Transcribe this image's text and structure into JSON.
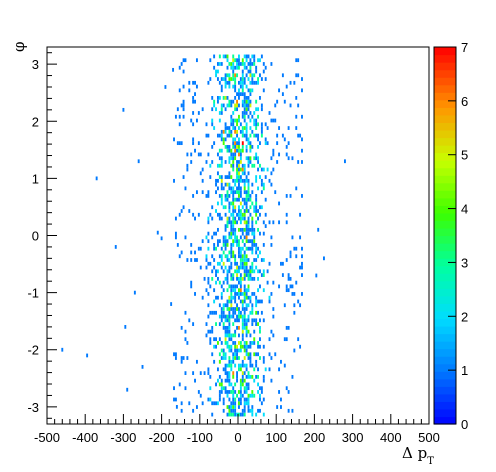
{
  "chart_data": {
    "type": "heatmap",
    "title": "",
    "xlabel": "Δ p_T",
    "ylabel": "φ",
    "xlim": [
      -500,
      500
    ],
    "ylim": [
      -3.3,
      3.3
    ],
    "grid": false,
    "x_ticks": [
      -500,
      -400,
      -300,
      -200,
      -100,
      0,
      100,
      200,
      300,
      400,
      500
    ],
    "y_ticks": [
      -3,
      -2,
      -1,
      0,
      1,
      2,
      3
    ],
    "z_range": [
      0,
      7
    ],
    "z_ticks": [
      0,
      1,
      2,
      3,
      4,
      5,
      6,
      7
    ],
    "bins": {
      "nx": 200,
      "ny": 100
    },
    "palette": "rainbow",
    "description_of_distribution": {
      "core_x_range": [
        -100,
        100
      ],
      "peak_count": 7,
      "outlier_points": [
        {
          "x": -460,
          "y": -2.0,
          "count": 1
        },
        {
          "x": -395,
          "y": -2.1,
          "count": 1
        },
        {
          "x": -370,
          "y": 1.0,
          "count": 1
        },
        {
          "x": -320,
          "y": -0.2,
          "count": 1
        },
        {
          "x": -300,
          "y": 2.2,
          "count": 1
        },
        {
          "x": -295,
          "y": -1.6,
          "count": 1
        },
        {
          "x": -290,
          "y": -2.7,
          "count": 1
        },
        {
          "x": -270,
          "y": -1.0,
          "count": 1
        },
        {
          "x": -260,
          "y": 1.3,
          "count": 1
        },
        {
          "x": -250,
          "y": -2.3,
          "count": 1
        },
        {
          "x": -210,
          "y": 0.05,
          "count": 1
        },
        {
          "x": -200,
          "y": -0.05,
          "count": 1
        },
        {
          "x": -190,
          "y": 2.6,
          "count": 1
        },
        {
          "x": -175,
          "y": -1.2,
          "count": 1
        },
        {
          "x": -170,
          "y": 2.9,
          "count": 1
        },
        {
          "x": -160,
          "y": -3.0,
          "count": 1
        },
        {
          "x": 205,
          "y": -0.7,
          "count": 1
        },
        {
          "x": 210,
          "y": 0.1,
          "count": 1
        },
        {
          "x": 225,
          "y": -0.4,
          "count": 1
        },
        {
          "x": 280,
          "y": 1.3,
          "count": 1
        }
      ]
    }
  }
}
